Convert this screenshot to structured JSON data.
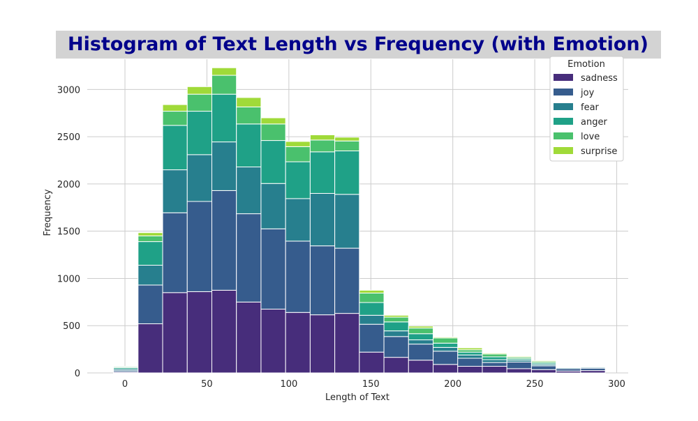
{
  "chart_data": {
    "type": "bar",
    "stacked": true,
    "title": "Histogram of Text Length vs Frequency (with Emotion)",
    "xlabel": "Length of Text",
    "ylabel": "Frequency",
    "xlim": [
      -23,
      307
    ],
    "ylim": [
      0,
      3320
    ],
    "xticks": [
      0,
      50,
      100,
      150,
      200,
      250,
      300
    ],
    "yticks": [
      0,
      500,
      1000,
      1500,
      2000,
      2500,
      3000
    ],
    "grid": true,
    "legend_title": "Emotion",
    "legend_position": "top-right",
    "bin_edges": [
      -7,
      8,
      23,
      38,
      53,
      68,
      83,
      98,
      113,
      128,
      143,
      158,
      173,
      188,
      203,
      218,
      233,
      248,
      263,
      278,
      293
    ],
    "series": [
      {
        "name": "sadness",
        "color": "#472d7b",
        "values": [
          10,
          520,
          850,
          860,
          875,
          750,
          675,
          640,
          615,
          630,
          220,
          165,
          135,
          90,
          70,
          70,
          45,
          35,
          20,
          25
        ]
      },
      {
        "name": "joy",
        "color": "#365c8d",
        "values": [
          15,
          410,
          845,
          955,
          1055,
          935,
          850,
          755,
          730,
          690,
          295,
          220,
          170,
          140,
          85,
          40,
          70,
          40,
          25,
          25
        ]
      },
      {
        "name": "fear",
        "color": "#277f8e",
        "values": [
          15,
          210,
          455,
          495,
          515,
          495,
          480,
          450,
          555,
          570,
          95,
          60,
          45,
          40,
          35,
          30,
          20,
          15,
          10,
          10
        ]
      },
      {
        "name": "anger",
        "color": "#1fa187",
        "values": [
          15,
          250,
          470,
          460,
          505,
          455,
          455,
          390,
          440,
          460,
          135,
          95,
          65,
          45,
          30,
          30,
          15,
          15,
          5,
          5
        ]
      },
      {
        "name": "love",
        "color": "#4ac16d",
        "values": [
          10,
          60,
          150,
          180,
          200,
          180,
          175,
          160,
          125,
          105,
          100,
          50,
          60,
          55,
          25,
          30,
          15,
          15,
          5,
          5
        ]
      },
      {
        "name": "surprise",
        "color": "#a0da39",
        "values": [
          5,
          35,
          70,
          80,
          80,
          100,
          65,
          55,
          55,
          40,
          30,
          20,
          20,
          10,
          20,
          10,
          10,
          10,
          5,
          5
        ]
      }
    ],
    "colors": {
      "title_text": "#00008b",
      "title_background": "#d3d3d3",
      "grid": "#cccccc",
      "bar_edge": "#ffffff"
    }
  }
}
